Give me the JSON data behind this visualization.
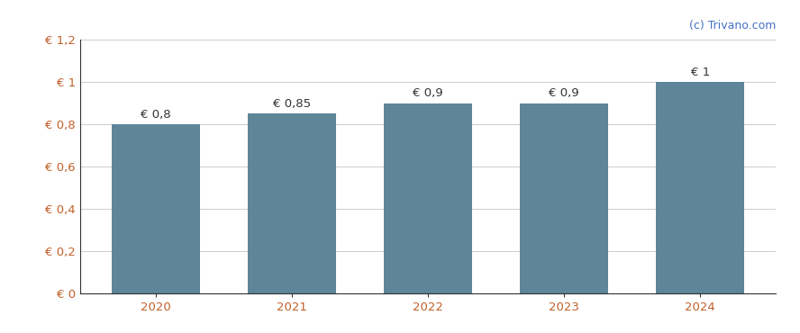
{
  "categories": [
    "2020",
    "2021",
    "2022",
    "2023",
    "2024"
  ],
  "values": [
    0.8,
    0.85,
    0.9,
    0.9,
    1.0
  ],
  "bar_labels": [
    "€ 0,8",
    "€ 0,85",
    "€ 0,9",
    "€ 0,9",
    "€ 1"
  ],
  "bar_color": "#5f8599",
  "ylim": [
    0,
    1.2
  ],
  "yticks": [
    0,
    0.2,
    0.4,
    0.6,
    0.8,
    1.0,
    1.2
  ],
  "ytick_labels": [
    "€ 0",
    "€ 0,2",
    "€ 0,4",
    "€ 0,6",
    "€ 0,8",
    "€ 1",
    "€ 1,2"
  ],
  "background_color": "#ffffff",
  "grid_color": "#cccccc",
  "bar_width": 0.65,
  "watermark": "(c) Trivano.com",
  "watermark_color": "#4472c4",
  "tick_color": "#c0602a",
  "label_color": "#333333",
  "label_fontsize": 9.5,
  "tick_fontsize": 9.5,
  "watermark_fontsize": 9
}
